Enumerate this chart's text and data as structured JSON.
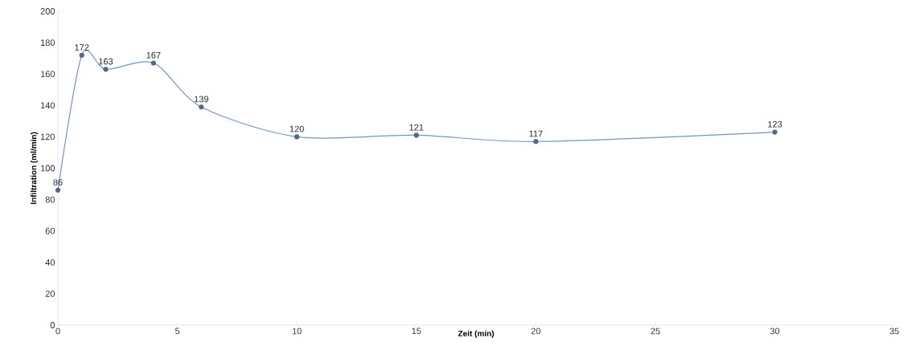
{
  "chart_data": {
    "type": "line",
    "xlabel": "Zeit (min)",
    "ylabel": "Infiltration (ml/min)",
    "x": [
      0,
      1,
      2,
      4,
      6,
      10,
      15,
      20,
      30
    ],
    "values": [
      86,
      172,
      163,
      167,
      139,
      120,
      121,
      117,
      123
    ],
    "color": "#7393d0",
    "marker": "circle",
    "line_style": "solid",
    "data_labels": true,
    "xlim": [
      0,
      35
    ],
    "ylim": [
      0,
      200
    ],
    "xticks": [
      0,
      5,
      10,
      15,
      20,
      25,
      30,
      35
    ],
    "yticks": [
      0,
      20,
      40,
      60,
      80,
      100,
      120,
      140,
      160,
      180,
      200
    ]
  }
}
